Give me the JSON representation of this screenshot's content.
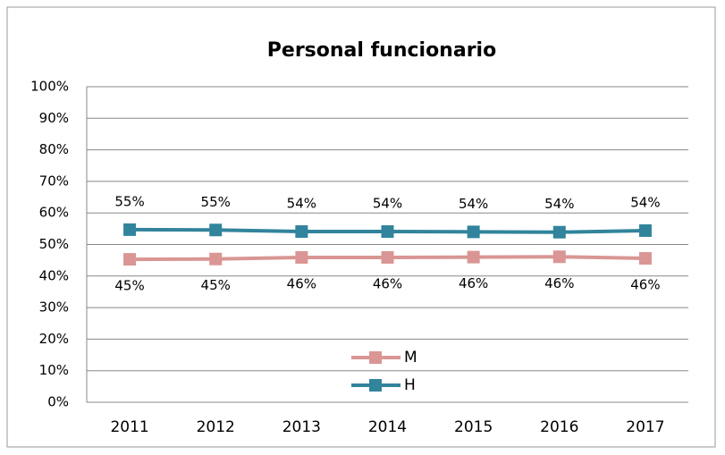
{
  "chart_data": {
    "type": "line",
    "title": "Personal funcionario",
    "categories": [
      "2011",
      "2012",
      "2013",
      "2014",
      "2015",
      "2016",
      "2017"
    ],
    "series": [
      {
        "name": "M",
        "color": "#d99694",
        "values": [
          45.3,
          45.4,
          45.9,
          45.9,
          46.0,
          46.1,
          45.6
        ],
        "value_labels": [
          "45%",
          "45%",
          "46%",
          "46%",
          "46%",
          "46%",
          "46%"
        ]
      },
      {
        "name": "H",
        "color": "#31849b",
        "values": [
          54.7,
          54.6,
          54.1,
          54.1,
          54.0,
          53.9,
          54.4
        ],
        "value_labels": [
          "55%",
          "55%",
          "54%",
          "54%",
          "54%",
          "54%",
          "54%"
        ]
      }
    ],
    "ylim": [
      0,
      100
    ],
    "yticks": [
      {
        "value": 0,
        "label": "0%"
      },
      {
        "value": 10,
        "label": "10%"
      },
      {
        "value": 20,
        "label": "20%"
      },
      {
        "value": 30,
        "label": "30%"
      },
      {
        "value": 40,
        "label": "40%"
      },
      {
        "value": 50,
        "label": "50%"
      },
      {
        "value": 60,
        "label": "60%"
      },
      {
        "value": 70,
        "label": "70%"
      },
      {
        "value": 80,
        "label": "80%"
      },
      {
        "value": 90,
        "label": "90%"
      },
      {
        "value": 100,
        "label": "100%"
      }
    ],
    "grid": true,
    "legend": "bottom"
  }
}
